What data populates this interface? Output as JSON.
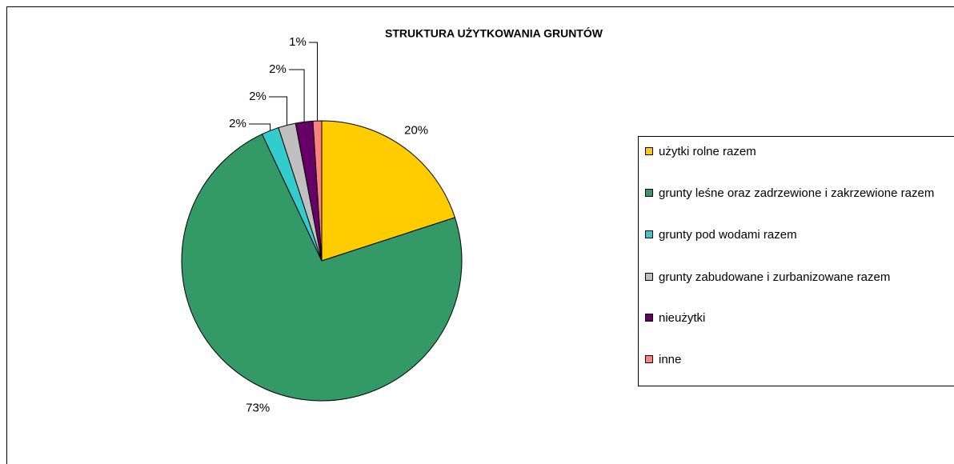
{
  "chart_data": {
    "type": "pie",
    "title": "STRUKTURA UŻYTKOWANIA GRUNTÓW",
    "categories": [
      "użytki rolne razem",
      "grunty leśne oraz zadrzewione i zakrzewione razem",
      "grunty pod wodami razem",
      "grunty zabudowane i zurbanizowane razem",
      "nieużytki",
      "inne"
    ],
    "values": [
      20,
      73,
      2,
      2,
      2,
      1
    ],
    "value_labels": [
      "20%",
      "73%",
      "2%",
      "2%",
      "2%",
      "1%"
    ],
    "colors": [
      "#ffcc00",
      "#339966",
      "#33cccc",
      "#c0c0c0",
      "#660066",
      "#ff8080"
    ],
    "legend": "right"
  }
}
